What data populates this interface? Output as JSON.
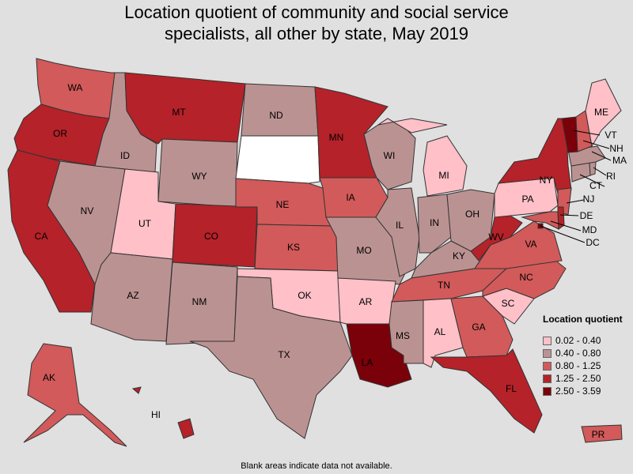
{
  "title": {
    "line1": "Location quotient of community and social service",
    "line2": "specialists, all other by state, May 2019"
  },
  "legend": {
    "title": "Location quotient",
    "classes": [
      {
        "label": "0.02 - 0.40",
        "color": "#ffc0c8"
      },
      {
        "label": "0.40 - 0.80",
        "color": "#bb9292"
      },
      {
        "label": "0.80 - 1.25",
        "color": "#d25a5a"
      },
      {
        "label": "1.25 - 2.50",
        "color": "#b52229"
      },
      {
        "label": "2.50 - 3.59",
        "color": "#7a0009"
      }
    ],
    "no_data_color": "#ffffff"
  },
  "footnote": "Blank areas indicate data not available.",
  "states": [
    {
      "abbr": "WA",
      "class": 2
    },
    {
      "abbr": "OR",
      "class": 3
    },
    {
      "abbr": "CA",
      "class": 3
    },
    {
      "abbr": "ID",
      "class": 1
    },
    {
      "abbr": "NV",
      "class": 1
    },
    {
      "abbr": "MT",
      "class": 3
    },
    {
      "abbr": "WY",
      "class": 1
    },
    {
      "abbr": "UT",
      "class": 0
    },
    {
      "abbr": "CO",
      "class": 3
    },
    {
      "abbr": "AZ",
      "class": 1
    },
    {
      "abbr": "NM",
      "class": 1
    },
    {
      "abbr": "ND",
      "class": 1
    },
    {
      "abbr": "SD",
      "class": -1
    },
    {
      "abbr": "NE",
      "class": 2
    },
    {
      "abbr": "KS",
      "class": 2
    },
    {
      "abbr": "OK",
      "class": 0
    },
    {
      "abbr": "TX",
      "class": 1
    },
    {
      "abbr": "MN",
      "class": 3
    },
    {
      "abbr": "IA",
      "class": 2
    },
    {
      "abbr": "MO",
      "class": 1
    },
    {
      "abbr": "AR",
      "class": 0
    },
    {
      "abbr": "LA",
      "class": 4
    },
    {
      "abbr": "WI",
      "class": 1
    },
    {
      "abbr": "IL",
      "class": 1
    },
    {
      "abbr": "MI",
      "class": 0
    },
    {
      "abbr": "IN",
      "class": 1
    },
    {
      "abbr": "OH",
      "class": 1
    },
    {
      "abbr": "KY",
      "class": 1
    },
    {
      "abbr": "TN",
      "class": 2
    },
    {
      "abbr": "MS",
      "class": 1
    },
    {
      "abbr": "AL",
      "class": 0
    },
    {
      "abbr": "GA",
      "class": 2
    },
    {
      "abbr": "FL",
      "class": 3
    },
    {
      "abbr": "SC",
      "class": 0
    },
    {
      "abbr": "NC",
      "class": 2
    },
    {
      "abbr": "VA",
      "class": 2
    },
    {
      "abbr": "WV",
      "class": 3
    },
    {
      "abbr": "PA",
      "class": 0
    },
    {
      "abbr": "NY",
      "class": 3
    },
    {
      "abbr": "ME",
      "class": 0
    },
    {
      "abbr": "VT",
      "class": 4
    },
    {
      "abbr": "NH",
      "class": 2
    },
    {
      "abbr": "MA",
      "class": 1
    },
    {
      "abbr": "RI",
      "class": 1
    },
    {
      "abbr": "CT",
      "class": 1
    },
    {
      "abbr": "NJ",
      "class": 2
    },
    {
      "abbr": "DE",
      "class": 3
    },
    {
      "abbr": "MD",
      "class": 2
    },
    {
      "abbr": "DC",
      "class": 4
    },
    {
      "abbr": "AK",
      "class": 2
    },
    {
      "abbr": "HI",
      "class": 3
    },
    {
      "abbr": "PR",
      "class": 2
    }
  ]
}
